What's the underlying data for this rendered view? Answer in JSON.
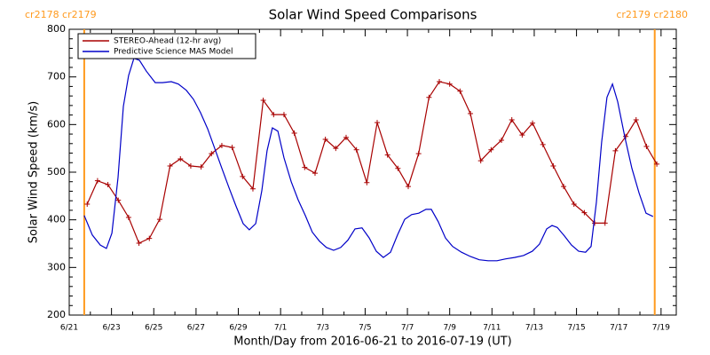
{
  "chart_data": {
    "type": "line",
    "title": "Solar Wind Speed Comparisons",
    "xlabel": "Month/Day from 2016-06-21 to 2016-07-19 (UT)",
    "ylabel": "Solar Wind Speed (km/s)",
    "xlim": [
      0,
      28.72
    ],
    "xticks": [
      {
        "value": 0,
        "label": "6/21"
      },
      {
        "value": 2,
        "label": "6/23"
      },
      {
        "value": 4,
        "label": "6/25"
      },
      {
        "value": 6,
        "label": "6/27"
      },
      {
        "value": 8,
        "label": "6/29"
      },
      {
        "value": 10,
        "label": "7/1"
      },
      {
        "value": 12,
        "label": "7/3"
      },
      {
        "value": 14,
        "label": "7/5"
      },
      {
        "value": 16,
        "label": "7/7"
      },
      {
        "value": 18,
        "label": "7/9"
      },
      {
        "value": 20,
        "label": "7/11"
      },
      {
        "value": 22,
        "label": "7/13"
      },
      {
        "value": 24,
        "label": "7/15"
      },
      {
        "value": 26,
        "label": "7/17"
      },
      {
        "value": 28,
        "label": "7/19"
      }
    ],
    "ylim": [
      200,
      800
    ],
    "yticks": [
      200,
      300,
      400,
      500,
      600,
      700,
      800
    ],
    "legend": "upper left",
    "annotations": [
      {
        "x": 0.71,
        "label": "cr2178 cr2179",
        "color": "#ff9a1e"
      },
      {
        "x": 27.7,
        "label": "cr2179 cr2180",
        "color": "#ff9a1e"
      }
    ],
    "series": [
      {
        "name": "STEREO-Ahead (12-hr avg)",
        "color": "#a80000",
        "marker": "+",
        "x": [
          0.85,
          1.34,
          1.83,
          2.32,
          2.81,
          3.3,
          3.79,
          4.28,
          4.77,
          5.26,
          5.75,
          6.24,
          6.73,
          7.22,
          7.71,
          8.2,
          8.69,
          9.18,
          9.67,
          10.16,
          10.65,
          11.14,
          11.63,
          12.12,
          12.61,
          13.1,
          13.59,
          14.08,
          14.57,
          15.06,
          15.55,
          16.04,
          16.53,
          17.02,
          17.51,
          18.0,
          18.49,
          18.98,
          19.47,
          19.96,
          20.45,
          20.94,
          21.43,
          21.92,
          22.41,
          22.9,
          23.39,
          23.88,
          24.37,
          24.86,
          25.35,
          25.84,
          26.33,
          26.82,
          27.31,
          27.8
        ],
        "values": [
          433,
          482,
          474,
          441,
          405,
          351,
          361,
          401,
          513,
          528,
          513,
          511,
          539,
          556,
          552,
          491,
          465,
          651,
          621,
          621,
          582,
          510,
          498,
          569,
          550,
          573,
          547,
          478,
          604,
          536,
          508,
          470,
          539,
          657,
          690,
          685,
          670,
          623,
          524,
          547,
          567,
          610,
          578,
          603,
          558,
          513,
          470,
          433,
          415,
          393,
          393,
          545,
          575,
          610,
          554,
          517
        ]
      },
      {
        "name": "Predictive Science MAS Model",
        "color": "#0000c8",
        "x": [
          0.71,
          1.09,
          1.47,
          1.76,
          2.02,
          2.31,
          2.56,
          2.81,
          3.06,
          3.32,
          3.65,
          4.07,
          4.41,
          4.83,
          5.16,
          5.54,
          5.88,
          6.21,
          6.55,
          6.89,
          7.22,
          7.56,
          7.89,
          8.23,
          8.52,
          8.82,
          9.11,
          9.36,
          9.61,
          9.87,
          10.16,
          10.5,
          10.83,
          11.17,
          11.5,
          11.84,
          12.17,
          12.51,
          12.85,
          13.18,
          13.52,
          13.85,
          14.19,
          14.53,
          14.86,
          15.2,
          15.53,
          15.87,
          16.2,
          16.54,
          16.88,
          17.13,
          17.46,
          17.8,
          18.14,
          18.56,
          18.98,
          19.4,
          19.82,
          20.24,
          20.65,
          21.07,
          21.49,
          21.91,
          22.25,
          22.59,
          22.84,
          23.09,
          23.43,
          23.76,
          24.1,
          24.43,
          24.69,
          24.94,
          25.19,
          25.44,
          25.7,
          25.95,
          26.29,
          26.62,
          26.96,
          27.29,
          27.62
        ],
        "values": [
          409,
          368,
          347,
          340,
          372,
          489,
          638,
          703,
          739,
          735,
          712,
          688,
          688,
          690,
          685,
          672,
          653,
          625,
          591,
          549,
          508,
          467,
          429,
          392,
          379,
          392,
          461,
          545,
          593,
          586,
          530,
          480,
          442,
          409,
          374,
          355,
          342,
          336,
          342,
          357,
          381,
          383,
          362,
          334,
          321,
          332,
          368,
          401,
          411,
          414,
          422,
          422,
          396,
          362,
          344,
          332,
          323,
          316,
          314,
          314,
          318,
          321,
          325,
          334,
          349,
          381,
          388,
          384,
          366,
          347,
          334,
          332,
          344,
          437,
          563,
          657,
          685,
          648,
          573,
          508,
          456,
          414,
          407
        ]
      }
    ]
  }
}
